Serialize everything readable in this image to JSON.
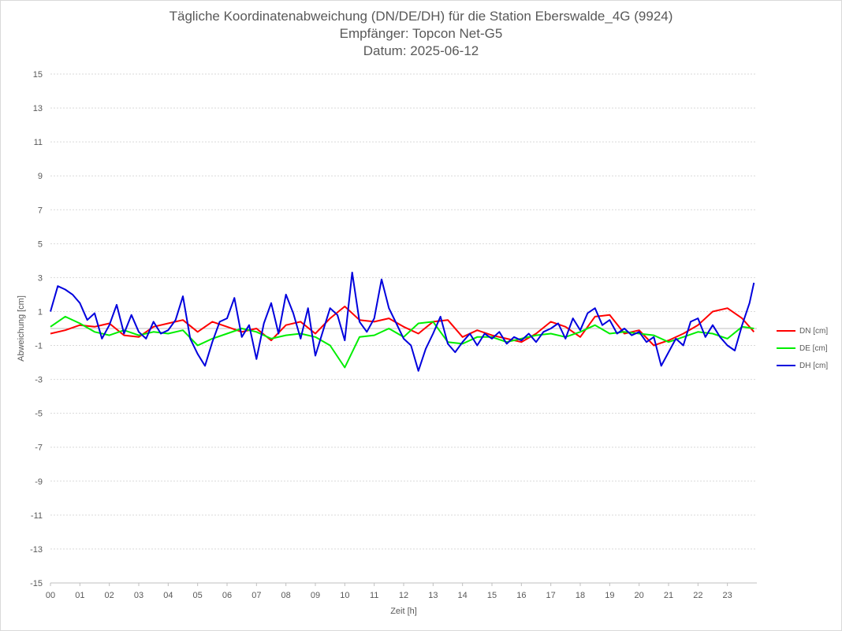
{
  "chart_data": {
    "type": "line",
    "title": "Tägliche Koordinatenabweichung (DN/DE/DH) für die Station Eberswalde_4G (9924)",
    "subtitle_1": "Empfänger: Topcon Net-G5",
    "subtitle_2": "Datum: 2025-06-12",
    "xlabel": "Zeit [h]",
    "ylabel": "Abweichung [cm]",
    "xlim": [
      0,
      24
    ],
    "ylim": [
      -15,
      15
    ],
    "x_ticks": [
      "00",
      "01",
      "02",
      "03",
      "04",
      "05",
      "06",
      "07",
      "08",
      "09",
      "10",
      "11",
      "12",
      "13",
      "14",
      "15",
      "16",
      "17",
      "18",
      "19",
      "20",
      "21",
      "22",
      "23"
    ],
    "y_ticks": [
      15,
      13,
      11,
      9,
      7,
      5,
      3,
      1,
      -1,
      -3,
      -5,
      -7,
      -9,
      -11,
      -13,
      -15
    ],
    "grid": true,
    "legend_position": "right",
    "series": [
      {
        "name": "DN [cm]",
        "color": "#ff0000",
        "x": [
          0,
          0.5,
          1,
          1.5,
          2,
          2.5,
          3,
          3.5,
          4,
          4.5,
          5,
          5.5,
          6,
          6.5,
          7,
          7.5,
          8,
          8.5,
          9,
          9.5,
          10,
          10.5,
          11,
          11.5,
          12,
          12.5,
          13,
          13.5,
          14,
          14.5,
          15,
          15.5,
          16,
          16.5,
          17,
          17.5,
          18,
          18.5,
          19,
          19.5,
          20,
          20.5,
          21,
          21.5,
          22,
          22.5,
          23,
          23.5,
          23.9
        ],
        "values": [
          -0.3,
          -0.1,
          0.2,
          0.1,
          0.3,
          -0.4,
          -0.5,
          0.1,
          0.3,
          0.5,
          -0.2,
          0.4,
          0.1,
          -0.2,
          0.0,
          -0.7,
          0.2,
          0.4,
          -0.3,
          0.6,
          1.3,
          0.5,
          0.4,
          0.6,
          0.1,
          -0.3,
          0.4,
          0.5,
          -0.5,
          -0.1,
          -0.4,
          -0.6,
          -0.8,
          -0.3,
          0.4,
          0.1,
          -0.5,
          0.7,
          0.8,
          -0.3,
          -0.1,
          -1.0,
          -0.7,
          -0.3,
          0.2,
          1.0,
          1.2,
          0.6,
          -0.2
        ]
      },
      {
        "name": "DE [cm]",
        "color": "#00ee00",
        "x": [
          0,
          0.5,
          1,
          1.5,
          2,
          2.5,
          3,
          3.5,
          4,
          4.5,
          5,
          5.5,
          6,
          6.5,
          7,
          7.5,
          8,
          8.5,
          9,
          9.5,
          10,
          10.5,
          11,
          11.5,
          12,
          12.5,
          13,
          13.5,
          14,
          14.5,
          15,
          15.5,
          16,
          16.5,
          17,
          17.5,
          18,
          18.5,
          19,
          19.5,
          20,
          20.5,
          21,
          21.5,
          22,
          22.5,
          23,
          23.5,
          23.9
        ],
        "values": [
          0.1,
          0.7,
          0.3,
          -0.2,
          -0.4,
          -0.1,
          -0.4,
          -0.2,
          -0.3,
          -0.1,
          -1.0,
          -0.6,
          -0.3,
          0.0,
          -0.2,
          -0.6,
          -0.4,
          -0.3,
          -0.5,
          -1.0,
          -2.3,
          -0.5,
          -0.4,
          0.0,
          -0.5,
          0.3,
          0.4,
          -0.8,
          -0.9,
          -0.5,
          -0.5,
          -0.8,
          -0.6,
          -0.4,
          -0.3,
          -0.5,
          -0.2,
          0.2,
          -0.3,
          -0.2,
          -0.3,
          -0.4,
          -0.8,
          -0.5,
          -0.2,
          -0.3,
          -0.6,
          0.1,
          0.0
        ]
      },
      {
        "name": "DH [cm]",
        "color": "#0000dd",
        "x": [
          0,
          0.25,
          0.5,
          0.75,
          1,
          1.25,
          1.5,
          1.75,
          2,
          2.25,
          2.5,
          2.75,
          3,
          3.25,
          3.5,
          3.75,
          4,
          4.25,
          4.5,
          4.75,
          5,
          5.25,
          5.5,
          5.75,
          6,
          6.25,
          6.5,
          6.75,
          7,
          7.25,
          7.5,
          7.75,
          8,
          8.25,
          8.5,
          8.75,
          9,
          9.25,
          9.5,
          9.75,
          10,
          10.25,
          10.5,
          10.75,
          11,
          11.25,
          11.5,
          11.75,
          12,
          12.25,
          12.5,
          12.75,
          13,
          13.25,
          13.5,
          13.75,
          14,
          14.25,
          14.5,
          14.75,
          15,
          15.25,
          15.5,
          15.75,
          16,
          16.25,
          16.5,
          16.75,
          17,
          17.25,
          17.5,
          17.75,
          18,
          18.25,
          18.5,
          18.75,
          19,
          19.25,
          19.5,
          19.75,
          20,
          20.25,
          20.5,
          20.75,
          21,
          21.25,
          21.5,
          21.75,
          22,
          22.25,
          22.5,
          22.75,
          23,
          23.25,
          23.5,
          23.75,
          23.9
        ],
        "values": [
          1.0,
          2.5,
          2.3,
          2.0,
          1.5,
          0.5,
          0.9,
          -0.6,
          0.2,
          1.4,
          -0.3,
          0.8,
          -0.2,
          -0.6,
          0.4,
          -0.3,
          -0.1,
          0.5,
          1.9,
          -0.6,
          -1.5,
          -2.2,
          -0.8,
          0.4,
          0.6,
          1.8,
          -0.5,
          0.2,
          -1.8,
          0.3,
          1.5,
          -0.3,
          2.0,
          0.9,
          -0.6,
          1.2,
          -1.6,
          -0.2,
          1.2,
          0.8,
          -0.7,
          3.3,
          0.4,
          -0.2,
          0.6,
          2.9,
          1.2,
          0.3,
          -0.6,
          -1.0,
          -2.5,
          -1.2,
          -0.3,
          0.7,
          -0.9,
          -1.4,
          -0.8,
          -0.3,
          -1.0,
          -0.3,
          -0.6,
          -0.2,
          -0.9,
          -0.5,
          -0.7,
          -0.3,
          -0.8,
          -0.2,
          0.0,
          0.3,
          -0.6,
          0.6,
          -0.1,
          0.9,
          1.2,
          0.2,
          0.5,
          -0.3,
          0.0,
          -0.4,
          -0.2,
          -0.8,
          -0.5,
          -2.2,
          -1.4,
          -0.6,
          -1.0,
          0.4,
          0.6,
          -0.5,
          0.2,
          -0.5,
          -1.0,
          -1.3,
          0.2,
          1.5,
          2.7
        ]
      }
    ]
  }
}
